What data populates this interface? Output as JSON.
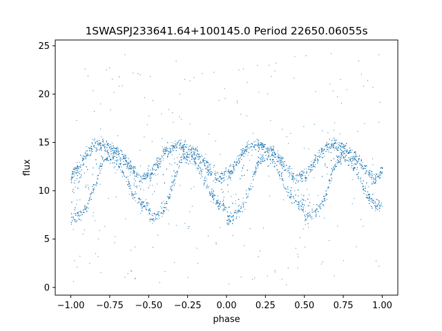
{
  "chart_data": {
    "type": "scatter",
    "title": "1SWASPJ233641.64+100145.0 Period 22650.06055s",
    "xlabel": "phase",
    "ylabel": "flux",
    "xlim": [
      -1.1,
      1.1
    ],
    "ylim": [
      -0.8,
      25.6
    ],
    "xticks": [
      -1.0,
      -0.75,
      -0.5,
      -0.25,
      0.0,
      0.25,
      0.5,
      0.75,
      1.0
    ],
    "xtick_labels": [
      "−1.00",
      "−0.75",
      "−0.50",
      "−0.25",
      "0.00",
      "0.25",
      "0.50",
      "0.75",
      "1.00"
    ],
    "yticks": [
      0,
      5,
      10,
      15,
      20,
      25
    ],
    "ytick_labels": [
      "0",
      "5",
      "10",
      "15",
      "20",
      "25"
    ],
    "grid": false,
    "legend": "none",
    "point_color": "#1f77b4",
    "light_curve_envelope": {
      "description_points": "phase vs approximate upper and lower flux bands of folded light curve",
      "phase": [
        0.0,
        0.05,
        0.1,
        0.15,
        0.2,
        0.25,
        0.3,
        0.35,
        0.4,
        0.45,
        0.5
      ],
      "upper": [
        12.0,
        13.3,
        14.6,
        15.2,
        15.4,
        15.0,
        14.6,
        13.7,
        12.6,
        11.8,
        12.6
      ],
      "lower": [
        6.8,
        7.0,
        7.8,
        10.0,
        12.6,
        13.2,
        12.6,
        11.0,
        9.2,
        8.2,
        8.0
      ]
    },
    "outlier_range": [
      0.3,
      24.5
    ]
  }
}
